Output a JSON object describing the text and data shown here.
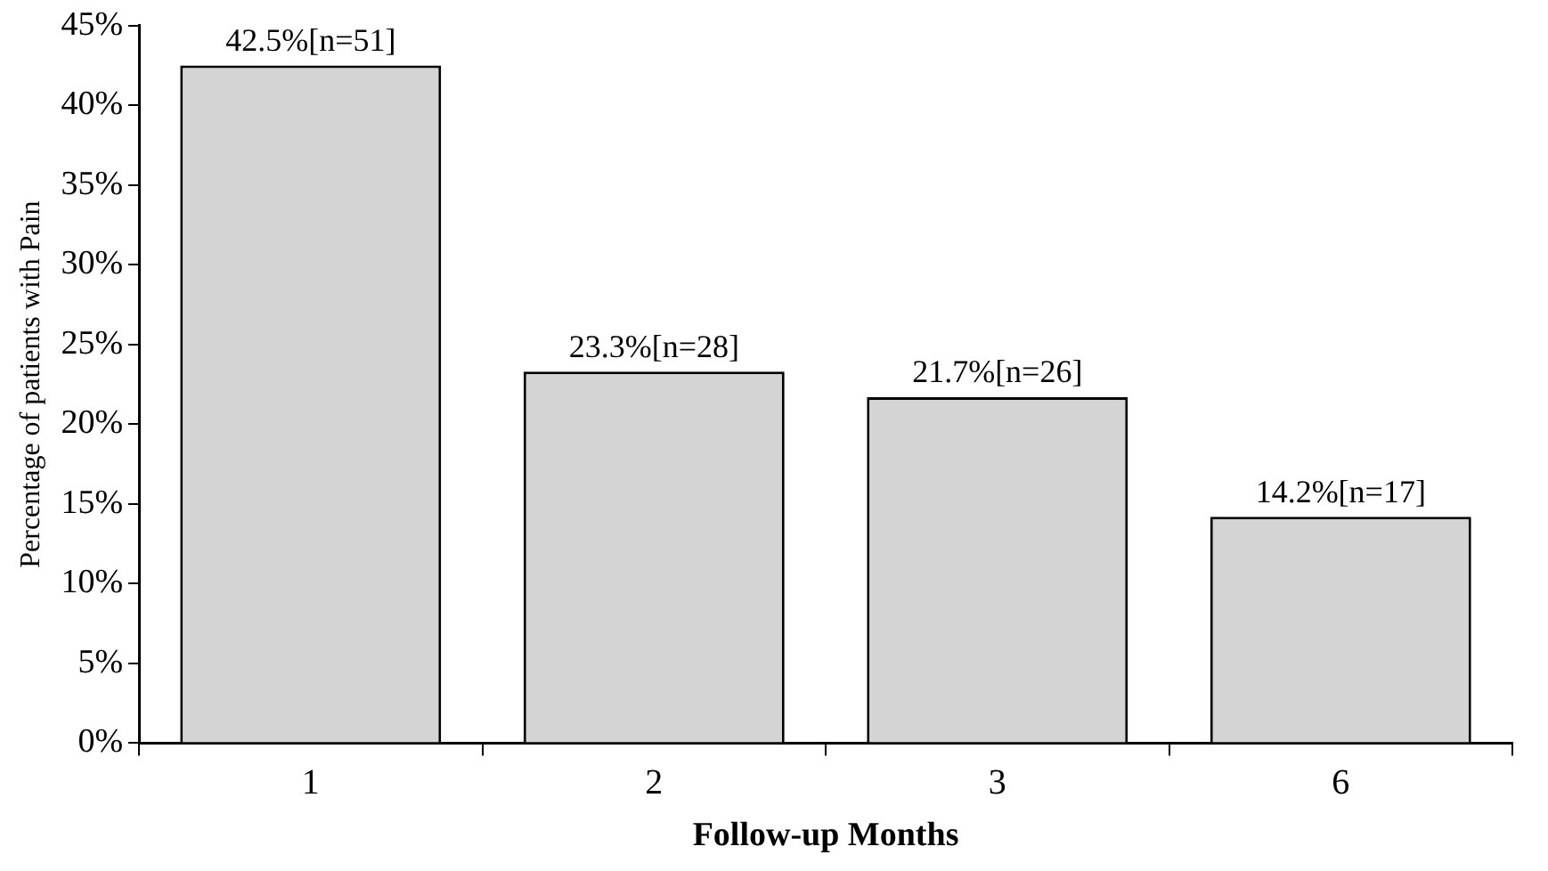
{
  "chart_data": {
    "type": "bar",
    "xlabel": "Follow-up Months",
    "ylabel": "Percentage of patients with Pain",
    "categories": [
      "1",
      "2",
      "3",
      "6"
    ],
    "values": [
      42.5,
      23.3,
      21.7,
      14.2
    ],
    "value_labels": [
      "42.5%[n=51]",
      "23.3%[n=28]",
      "21.7%[n=26]",
      "14.2%[n=17]"
    ],
    "color": "#d4d4d4",
    "ylim": [
      0,
      45
    ],
    "yticks": [
      {
        "value": 0,
        "label": "0%"
      },
      {
        "value": 5,
        "label": "5%"
      },
      {
        "value": 10,
        "label": "10%"
      },
      {
        "value": 15,
        "label": "15%"
      },
      {
        "value": 20,
        "label": "20%"
      },
      {
        "value": 25,
        "label": "25%"
      },
      {
        "value": 30,
        "label": "30%"
      },
      {
        "value": 35,
        "label": "35%"
      },
      {
        "value": 40,
        "label": "40%"
      },
      {
        "value": 45,
        "label": "45%"
      }
    ],
    "grid": false,
    "legend": false
  }
}
